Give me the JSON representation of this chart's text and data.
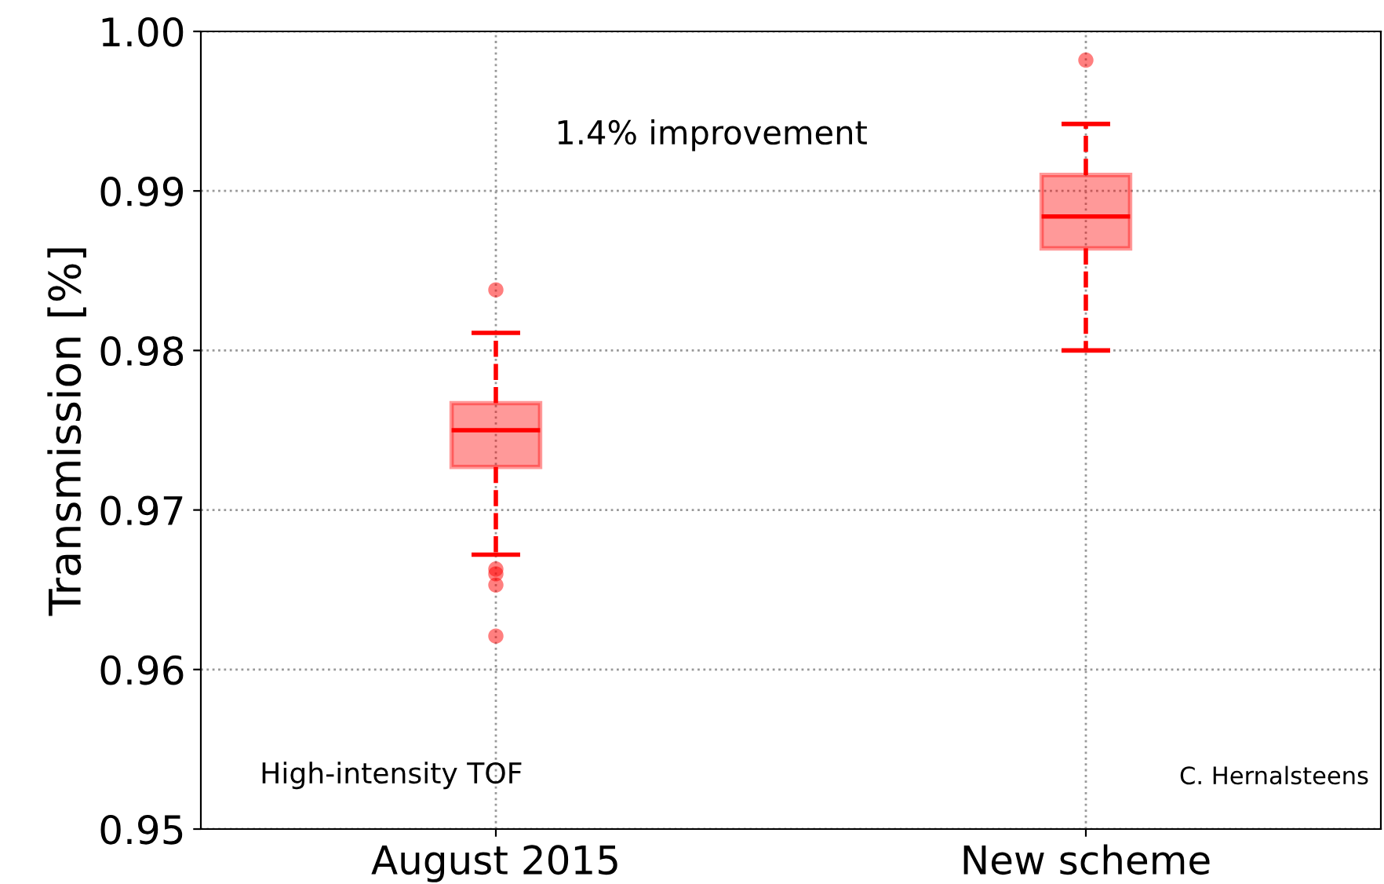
{
  "chart_data": {
    "type": "box",
    "ylabel": "Transmission [%]",
    "categories": [
      "August 2015",
      "New scheme"
    ],
    "boxes": [
      {
        "low": 0.9672,
        "q1": 0.9727,
        "median": 0.975,
        "q3": 0.9767,
        "high": 0.9811,
        "outliers": [
          0.9838,
          0.9663,
          0.966,
          0.9653,
          0.9621
        ]
      },
      {
        "low": 0.98,
        "q1": 0.9864,
        "median": 0.9884,
        "q3": 0.991,
        "high": 0.9942,
        "outliers": [
          0.9982
        ]
      }
    ],
    "color": "#ff0000",
    "ylim": [
      0.95,
      1.0
    ],
    "yticks": [
      0.95,
      0.96,
      0.97,
      0.98,
      0.99,
      {
        "value": 1.0,
        "label": "1.00"
      }
    ],
    "grid": true,
    "line_style": "dashed",
    "annotations": [
      "1.4% improvement",
      "High-intensity TOF",
      "C. Hernalsteens"
    ]
  }
}
